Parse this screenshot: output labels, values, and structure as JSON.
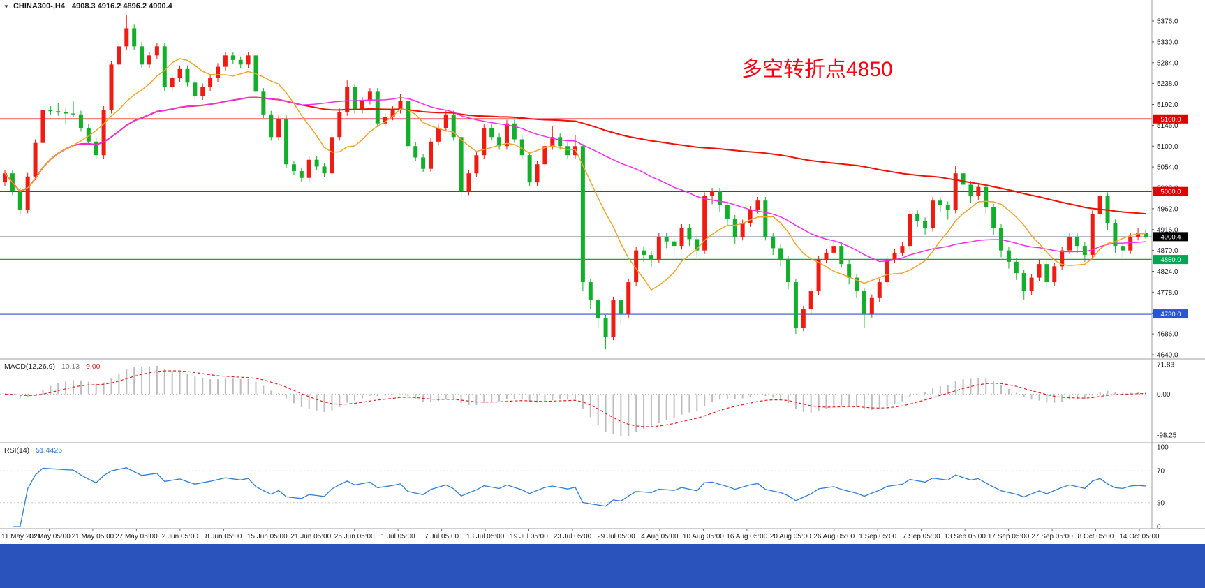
{
  "quote_bar": {
    "marker_icon": "▼",
    "symbol": "CHINA300-,H4",
    "ohlc": "4908.3 4916.2 4896.2 4900.4"
  },
  "annotation": {
    "text": "多空转折点4850",
    "color": "#ff0012"
  },
  "indicators": {
    "macd": {
      "label": "MACD(12,26,9)",
      "main_value": "10.13",
      "signal_value": "9.00",
      "scale": [
        {
          "text": "71.83",
          "value": 71.83
        },
        {
          "text": "0.00",
          "value": 0
        },
        {
          "text": "-98.25",
          "value": -98.25
        }
      ],
      "histogram_color": "#bdbdbd",
      "signal_color": "#e02020"
    },
    "rsi": {
      "label": "RSI(14)",
      "value": "51.4426",
      "scale": [
        {
          "text": "100",
          "value": 100
        },
        {
          "text": "70",
          "value": 70
        },
        {
          "text": "30",
          "value": 30
        },
        {
          "text": "0",
          "value": 0
        }
      ],
      "levels": [
        70,
        30
      ],
      "line_color": "#2f7ed8"
    }
  },
  "window": {
    "taskbar_color": "#2a54bc"
  },
  "chart_data": {
    "type": "candlestick",
    "title": "CHINA300- H4",
    "grid": false,
    "legend": false,
    "ylim": [
      4640,
      5376
    ],
    "y_ticks": [
      5376,
      5330,
      5284,
      5238,
      5192,
      5146,
      5100,
      5054,
      5008,
      4962,
      4916,
      4870,
      4824,
      4778,
      4732,
      4686,
      4640
    ],
    "x_labels": [
      "11 May 2021",
      "17 May 05:00",
      "21 May 05:00",
      "27 May 05:00",
      "2 Jun 05:00",
      "8 Jun 05:00",
      "15 Jun 05:00",
      "21 Jun 05:00",
      "25 Jun 05:00",
      "1 Jul 05:00",
      "7 Jul 05:00",
      "13 Jul 05:00",
      "19 Jul 05:00",
      "23 Jul 05:00",
      "29 Jul 05:00",
      "4 Aug 05:00",
      "10 Aug 05:00",
      "16 Aug 05:00",
      "20 Aug 05:00",
      "26 Aug 05:00",
      "1 Sep 05:00",
      "7 Sep 05:00",
      "13 Sep 05:00",
      "17 Sep 05:00",
      "27 Sep 05:00",
      "8 Oct 05:00",
      "14 Oct 05:00"
    ],
    "up_color": "#ee1c12",
    "down_color": "#12b02a",
    "h_lines": [
      {
        "value": 5160.0,
        "color": "#f00000",
        "width": 1.6,
        "label_bg": "#e00000"
      },
      {
        "value": 5000.0,
        "color": "#f00000",
        "width": 1.6,
        "label_bg": "#e00000"
      },
      {
        "value": 4850.0,
        "color": "#00a651",
        "width": 1.8,
        "label_bg": "#00a651"
      },
      {
        "value": 4730.0,
        "color": "#2b54d4",
        "width": 2.2,
        "label_bg": "#2b54d4"
      }
    ],
    "current_price": {
      "value": 4900.4,
      "line_color": "#7c8ea6",
      "label_bg": "#000000"
    },
    "ma_lines": [
      {
        "name": "slow",
        "period": 110,
        "color": "#ee1100",
        "width": 2
      },
      {
        "name": "medium",
        "period": 40,
        "color": "#f32cf3",
        "width": 1.5
      },
      {
        "name": "fast",
        "period": 10,
        "color": "#efa52a",
        "width": 1.5
      }
    ],
    "candles": [
      [
        5020,
        5048,
        5012,
        5040
      ],
      [
        5040,
        5048,
        4992,
        5000
      ],
      [
        5000,
        5008,
        4948,
        4960
      ],
      [
        4960,
        5041,
        4952,
        5033
      ],
      [
        5033,
        5115,
        5025,
        5107
      ],
      [
        5107,
        5188,
        5099,
        5180
      ],
      [
        5180,
        5188,
        5169,
        5177
      ],
      [
        5177,
        5195,
        5167,
        5175
      ],
      [
        5175,
        5183,
        5150,
        5172
      ],
      [
        5172,
        5200,
        5164,
        5170
      ],
      [
        5170,
        5178,
        5132,
        5140
      ],
      [
        5140,
        5148,
        5102,
        5110
      ],
      [
        5110,
        5118,
        5072,
        5080
      ],
      [
        5080,
        5188,
        5072,
        5180
      ],
      [
        5180,
        5288,
        5172,
        5280
      ],
      [
        5280,
        5328,
        5272,
        5320
      ],
      [
        5320,
        5388,
        5312,
        5360
      ],
      [
        5360,
        5368,
        5312,
        5320
      ],
      [
        5320,
        5330,
        5272,
        5280
      ],
      [
        5280,
        5308,
        5272,
        5300
      ],
      [
        5300,
        5328,
        5292,
        5320
      ],
      [
        5320,
        5328,
        5222,
        5230
      ],
      [
        5230,
        5258,
        5222,
        5250
      ],
      [
        5250,
        5278,
        5242,
        5270
      ],
      [
        5270,
        5278,
        5232,
        5240
      ],
      [
        5240,
        5248,
        5202,
        5210
      ],
      [
        5210,
        5238,
        5202,
        5230
      ],
      [
        5230,
        5258,
        5222,
        5250
      ],
      [
        5250,
        5283,
        5242,
        5275
      ],
      [
        5275,
        5308,
        5267,
        5300
      ],
      [
        5300,
        5308,
        5282,
        5290
      ],
      [
        5290,
        5298,
        5272,
        5280
      ],
      [
        5280,
        5308,
        5272,
        5300
      ],
      [
        5300,
        5308,
        5212,
        5220
      ],
      [
        5220,
        5228,
        5162,
        5170
      ],
      [
        5170,
        5178,
        5112,
        5120
      ],
      [
        5120,
        5168,
        5112,
        5160
      ],
      [
        5160,
        5168,
        5052,
        5060
      ],
      [
        5060,
        5068,
        5037,
        5045
      ],
      [
        5045,
        5053,
        5022,
        5030
      ],
      [
        5030,
        5078,
        5022,
        5070
      ],
      [
        5070,
        5078,
        5047,
        5055
      ],
      [
        5055,
        5063,
        5032,
        5040
      ],
      [
        5040,
        5128,
        5032,
        5120
      ],
      [
        5120,
        5183,
        5112,
        5175
      ],
      [
        5175,
        5245,
        5167,
        5230
      ],
      [
        5230,
        5238,
        5172,
        5180
      ],
      [
        5180,
        5208,
        5172,
        5200
      ],
      [
        5200,
        5228,
        5192,
        5220
      ],
      [
        5220,
        5228,
        5142,
        5150
      ],
      [
        5150,
        5173,
        5142,
        5165
      ],
      [
        5165,
        5188,
        5157,
        5180
      ],
      [
        5180,
        5215,
        5172,
        5200
      ],
      [
        5200,
        5208,
        5092,
        5100
      ],
      [
        5100,
        5108,
        5067,
        5075
      ],
      [
        5075,
        5083,
        5042,
        5050
      ],
      [
        5050,
        5118,
        5042,
        5110
      ],
      [
        5110,
        5148,
        5102,
        5140
      ],
      [
        5140,
        5178,
        5132,
        5170
      ],
      [
        5170,
        5178,
        5112,
        5120
      ],
      [
        5120,
        5128,
        4985,
        5000
      ],
      [
        5000,
        5048,
        4992,
        5040
      ],
      [
        5040,
        5088,
        5032,
        5080
      ],
      [
        5080,
        5148,
        5072,
        5140
      ],
      [
        5140,
        5148,
        5112,
        5120
      ],
      [
        5120,
        5128,
        5092,
        5100
      ],
      [
        5100,
        5158,
        5092,
        5150
      ],
      [
        5150,
        5158,
        5107,
        5115
      ],
      [
        5115,
        5123,
        5072,
        5080
      ],
      [
        5080,
        5088,
        5012,
        5020
      ],
      [
        5020,
        5068,
        5012,
        5060
      ],
      [
        5060,
        5108,
        5052,
        5100
      ],
      [
        5100,
        5145,
        5092,
        5120
      ],
      [
        5120,
        5128,
        5092,
        5100
      ],
      [
        5100,
        5108,
        5072,
        5080
      ],
      [
        5080,
        5125,
        5072,
        5100
      ],
      [
        5100,
        5105,
        4780,
        4800
      ],
      [
        4800,
        4808,
        4740,
        4760
      ],
      [
        4760,
        4768,
        4700,
        4720
      ],
      [
        4720,
        4728,
        4652,
        4680
      ],
      [
        4680,
        4768,
        4672,
        4760
      ],
      [
        4760,
        4768,
        4705,
        4730
      ],
      [
        4730,
        4808,
        4722,
        4800
      ],
      [
        4800,
        4878,
        4792,
        4870
      ],
      [
        4870,
        4878,
        4845,
        4860
      ],
      [
        4860,
        4868,
        4832,
        4850
      ],
      [
        4850,
        4908,
        4842,
        4900
      ],
      [
        4900,
        4908,
        4875,
        4890
      ],
      [
        4890,
        4898,
        4862,
        4880
      ],
      [
        4880,
        4928,
        4872,
        4920
      ],
      [
        4920,
        4928,
        4880,
        4895
      ],
      [
        4895,
        4903,
        4855,
        4870
      ],
      [
        4870,
        4998,
        4862,
        4990
      ],
      [
        4990,
        5008,
        4972,
        5000
      ],
      [
        5000,
        5008,
        4955,
        4970
      ],
      [
        4970,
        4978,
        4925,
        4940
      ],
      [
        4940,
        4948,
        4885,
        4900
      ],
      [
        4900,
        4938,
        4892,
        4930
      ],
      [
        4930,
        4968,
        4922,
        4960
      ],
      [
        4960,
        4988,
        4952,
        4980
      ],
      [
        4980,
        4988,
        4892,
        4900
      ],
      [
        4900,
        4908,
        4860,
        4875
      ],
      [
        4875,
        4883,
        4835,
        4850
      ],
      [
        4850,
        4858,
        4785,
        4800
      ],
      [
        4800,
        4808,
        4686,
        4700
      ],
      [
        4700,
        4748,
        4692,
        4740
      ],
      [
        4740,
        4788,
        4732,
        4780
      ],
      [
        4780,
        4858,
        4772,
        4850
      ],
      [
        4850,
        4873,
        4842,
        4865
      ],
      [
        4865,
        4888,
        4857,
        4880
      ],
      [
        4880,
        4888,
        4832,
        4840
      ],
      [
        4840,
        4848,
        4795,
        4810
      ],
      [
        4810,
        4818,
        4765,
        4780
      ],
      [
        4780,
        4788,
        4700,
        4730
      ],
      [
        4730,
        4773,
        4722,
        4765
      ],
      [
        4765,
        4808,
        4757,
        4800
      ],
      [
        4800,
        4858,
        4792,
        4850
      ],
      [
        4850,
        4873,
        4842,
        4865
      ],
      [
        4865,
        4888,
        4857,
        4880
      ],
      [
        4880,
        4958,
        4872,
        4950
      ],
      [
        4950,
        4958,
        4922,
        4935
      ],
      [
        4935,
        4943,
        4905,
        4920
      ],
      [
        4920,
        4988,
        4912,
        4980
      ],
      [
        4980,
        4988,
        4955,
        4970
      ],
      [
        4970,
        4978,
        4938,
        4960
      ],
      [
        4960,
        5056,
        4952,
        5040
      ],
      [
        5040,
        5048,
        5000,
        5015
      ],
      [
        5015,
        5023,
        4975,
        4990
      ],
      [
        4990,
        5018,
        4982,
        5010
      ],
      [
        5010,
        5018,
        4950,
        4965
      ],
      [
        4965,
        4973,
        4905,
        4920
      ],
      [
        4920,
        4928,
        4855,
        4870
      ],
      [
        4870,
        4878,
        4830,
        4845
      ],
      [
        4845,
        4853,
        4805,
        4820
      ],
      [
        4820,
        4828,
        4762,
        4780
      ],
      [
        4780,
        4818,
        4772,
        4810
      ],
      [
        4810,
        4848,
        4802,
        4840
      ],
      [
        4840,
        4848,
        4785,
        4800
      ],
      [
        4800,
        4843,
        4792,
        4835
      ],
      [
        4835,
        4878,
        4827,
        4870
      ],
      [
        4870,
        4908,
        4862,
        4900
      ],
      [
        4900,
        4908,
        4865,
        4880
      ],
      [
        4880,
        4888,
        4845,
        4860
      ],
      [
        4860,
        4958,
        4852,
        4950
      ],
      [
        4950,
        4994,
        4942,
        4990
      ],
      [
        4990,
        4998,
        4915,
        4930
      ],
      [
        4930,
        4938,
        4865,
        4880
      ],
      [
        4880,
        4888,
        4855,
        4870
      ],
      [
        4870,
        4908,
        4862,
        4900
      ],
      [
        4900,
        4920,
        4892,
        4908
      ],
      [
        4908,
        4916.2,
        4896.2,
        4900.4
      ]
    ]
  }
}
